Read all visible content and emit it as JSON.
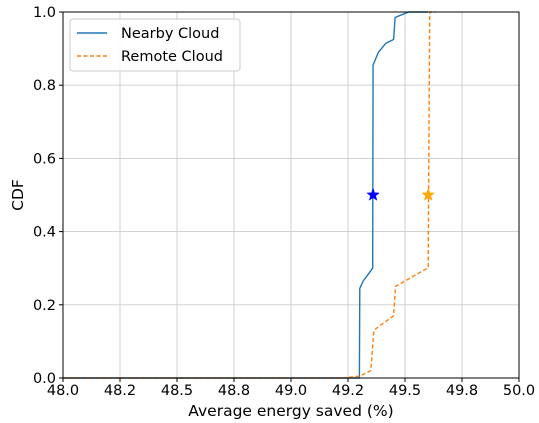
{
  "chart_data": {
    "type": "line",
    "xlabel": "Average energy saved (%)",
    "ylabel": "CDF",
    "xlim": [
      48.0,
      50.0
    ],
    "ylim": [
      0.0,
      1.0
    ],
    "x_ticks": [
      48.0,
      48.2,
      48.5,
      48.8,
      49.0,
      49.2,
      49.5,
      49.8,
      50.0
    ],
    "y_ticks": [
      0.0,
      0.2,
      0.4,
      0.6,
      0.8,
      1.0
    ],
    "grid": true,
    "legend_position": "top-left",
    "series": [
      {
        "name": "Nearby Cloud",
        "color": "#1f77b4",
        "style": "solid",
        "x": [
          48.0,
          49.26,
          49.262,
          49.28,
          49.33,
          49.332,
          49.36,
          49.4,
          49.44,
          49.448,
          49.48,
          49.52,
          49.62
        ],
        "y": [
          0.0,
          0.0,
          0.245,
          0.265,
          0.3,
          0.855,
          0.89,
          0.915,
          0.925,
          0.985,
          0.992,
          1.0,
          1.0
        ],
        "median_marker": {
          "x": 49.332,
          "y": 0.5,
          "color": "#0000ff"
        }
      },
      {
        "name": "Remote Cloud",
        "color": "#ff7f0e",
        "style": "dashed",
        "x": [
          48.0,
          49.18,
          49.26,
          49.32,
          49.336,
          49.36,
          49.4,
          49.44,
          49.45,
          49.5,
          49.6,
          49.622,
          49.63,
          49.66
        ],
        "y": [
          0.0,
          0.0,
          0.005,
          0.02,
          0.13,
          0.14,
          0.155,
          0.17,
          0.25,
          0.265,
          0.295,
          0.3,
          1.0,
          1.0
        ],
        "median_marker": {
          "x": 49.622,
          "y": 0.5,
          "color": "#ffa500"
        }
      }
    ]
  }
}
